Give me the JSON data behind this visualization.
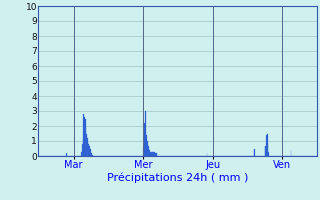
{
  "title": "Précipitations 24h ( mm )",
  "background_color": "#d0f0f0",
  "grid_color": "#aacccc",
  "bar_color": "#2255cc",
  "bar_edge_color": "#4477dd",
  "ylim": [
    0,
    10
  ],
  "yticks": [
    0,
    1,
    2,
    3,
    4,
    5,
    6,
    7,
    8,
    9,
    10
  ],
  "day_labels": [
    "Mar",
    "Mer",
    "Jeu",
    "Ven"
  ],
  "day_positions": [
    48,
    144,
    240,
    336
  ],
  "n_bars": 384,
  "values": [
    0,
    0,
    0,
    0,
    0,
    0,
    0,
    0,
    0,
    0,
    0,
    0,
    0,
    0,
    0,
    0,
    0,
    0,
    0,
    0,
    0,
    0,
    0,
    0,
    0,
    0,
    0,
    0,
    0,
    0,
    0,
    0,
    0,
    0,
    0,
    0,
    0,
    0,
    0.2,
    0,
    0,
    0,
    0,
    0,
    0,
    0,
    0,
    0,
    0,
    0,
    0,
    0,
    0,
    0,
    0,
    0,
    0,
    0,
    0,
    0.3,
    0.8,
    1.2,
    2.8,
    2.6,
    2.5,
    2.0,
    1.5,
    1.2,
    1.0,
    0.8,
    0.7,
    0.5,
    0.3,
    0.2,
    0.1,
    0,
    0,
    0,
    0,
    0,
    0,
    0,
    0,
    0,
    0,
    0,
    0,
    0,
    0,
    0,
    0,
    0,
    0,
    0,
    0,
    0,
    0,
    0,
    0,
    0,
    0,
    0,
    0,
    0,
    0,
    0,
    0,
    0,
    0,
    0,
    0,
    0,
    0,
    0,
    0,
    0,
    0,
    0,
    0,
    0,
    0,
    0,
    0,
    0,
    0,
    0,
    0,
    0,
    0,
    0,
    0,
    0,
    0,
    0,
    0,
    0,
    0,
    0,
    0,
    0,
    0,
    0,
    0,
    0,
    0.6,
    1.0,
    2.2,
    3.0,
    1.6,
    1.4,
    1.0,
    0.7,
    0.5,
    0.4,
    0.3,
    0.3,
    0.3,
    0.3,
    0.3,
    0.3,
    0.3,
    0.2,
    0.2,
    0.2,
    0,
    0,
    0,
    0,
    0,
    0,
    0,
    0,
    0,
    0,
    0,
    0,
    0,
    0,
    0,
    0,
    0,
    0,
    0,
    0,
    0,
    0,
    0,
    0,
    0,
    0,
    0,
    0,
    0,
    0,
    0,
    0,
    0,
    0,
    0,
    0,
    0,
    0,
    0,
    0,
    0,
    0,
    0,
    0,
    0,
    0,
    0,
    0,
    0,
    0,
    0,
    0,
    0,
    0,
    0,
    0,
    0,
    0,
    0,
    0,
    0,
    0,
    0,
    0,
    0,
    0,
    0,
    0,
    0.2,
    0,
    0,
    0,
    0,
    0,
    0,
    0,
    0,
    0,
    0,
    0,
    0,
    0,
    0,
    0,
    0,
    0,
    0,
    0,
    0,
    0,
    0,
    0,
    0,
    0,
    0,
    0,
    0,
    0,
    0,
    0,
    0,
    0,
    0,
    0,
    0,
    0,
    0,
    0,
    0,
    0,
    0,
    0,
    0,
    0,
    0,
    0,
    0,
    0,
    0,
    0,
    0,
    0,
    0,
    0,
    0,
    0,
    0,
    0,
    0,
    0,
    0,
    0,
    0,
    0.5,
    0.5,
    0,
    0,
    0,
    0,
    0,
    0,
    0,
    0,
    0,
    0,
    0,
    0,
    0,
    0.7,
    0.7,
    1.4,
    1.5,
    0.8,
    0.3,
    0,
    0,
    0,
    0,
    0,
    0,
    0,
    0,
    0,
    0,
    0,
    0,
    0,
    0,
    0,
    0,
    0,
    0,
    0,
    0,
    0,
    0,
    0,
    0,
    0,
    0,
    0,
    0,
    0,
    0,
    0.4,
    0,
    0,
    0,
    0,
    0,
    0,
    0,
    0,
    0,
    0,
    0,
    0,
    0,
    0,
    0,
    0,
    0,
    0,
    0,
    0,
    0,
    0,
    0,
    0,
    0,
    0,
    0,
    0,
    0,
    0,
    0,
    0,
    0,
    0,
    0
  ]
}
